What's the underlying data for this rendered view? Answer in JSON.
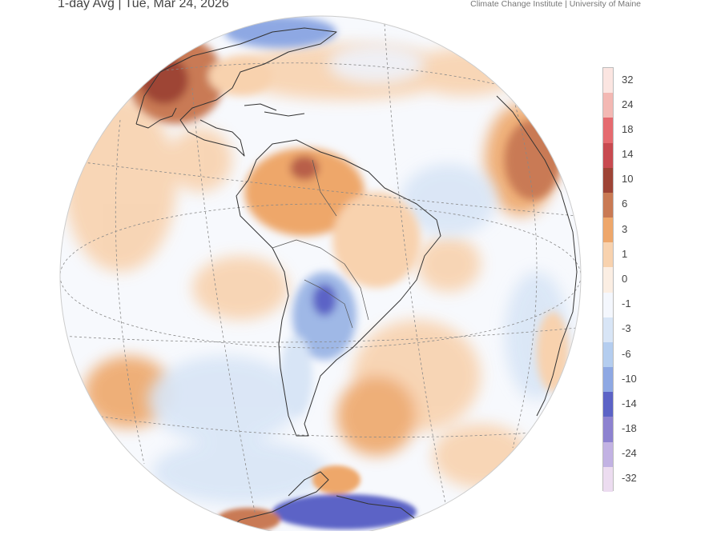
{
  "header": {
    "title": "1-day Avg | Tue, Mar 24, 2026",
    "credit": "Climate Change Institute | University of Maine"
  },
  "map": {
    "projection": "orthographic",
    "center": "South America",
    "variable": "temperature anomaly",
    "colors": {
      "ocean_neutral": "#f7f9fd",
      "warm_light": "#f8d2ae",
      "warm_medium": "#eea76b",
      "warm_strong": "#b85f4a",
      "cool_light": "#d8e5f6",
      "cool_medium": "#9fb8e6",
      "cool_strong": "#5c63c6",
      "coastline": "#333333",
      "graticule": "#888888"
    }
  },
  "legend": {
    "ticks": [
      "32",
      "24",
      "18",
      "14",
      "10",
      "6",
      "3",
      "1",
      "0",
      "-1",
      "-3",
      "-6",
      "-10",
      "-14",
      "-18",
      "-24",
      "-32"
    ],
    "colors": [
      "#fbe5e1",
      "#f3b8b3",
      "#e56a6f",
      "#c84a50",
      "#9e4436",
      "#c97a54",
      "#eea76b",
      "#f8d2ae",
      "#fbeee3",
      "#f4f7fd",
      "#d8e5f6",
      "#b4cdef",
      "#8ea8e3",
      "#5c63c6",
      "#8d82d0",
      "#c2b2e3",
      "#ecdcf0"
    ]
  }
}
